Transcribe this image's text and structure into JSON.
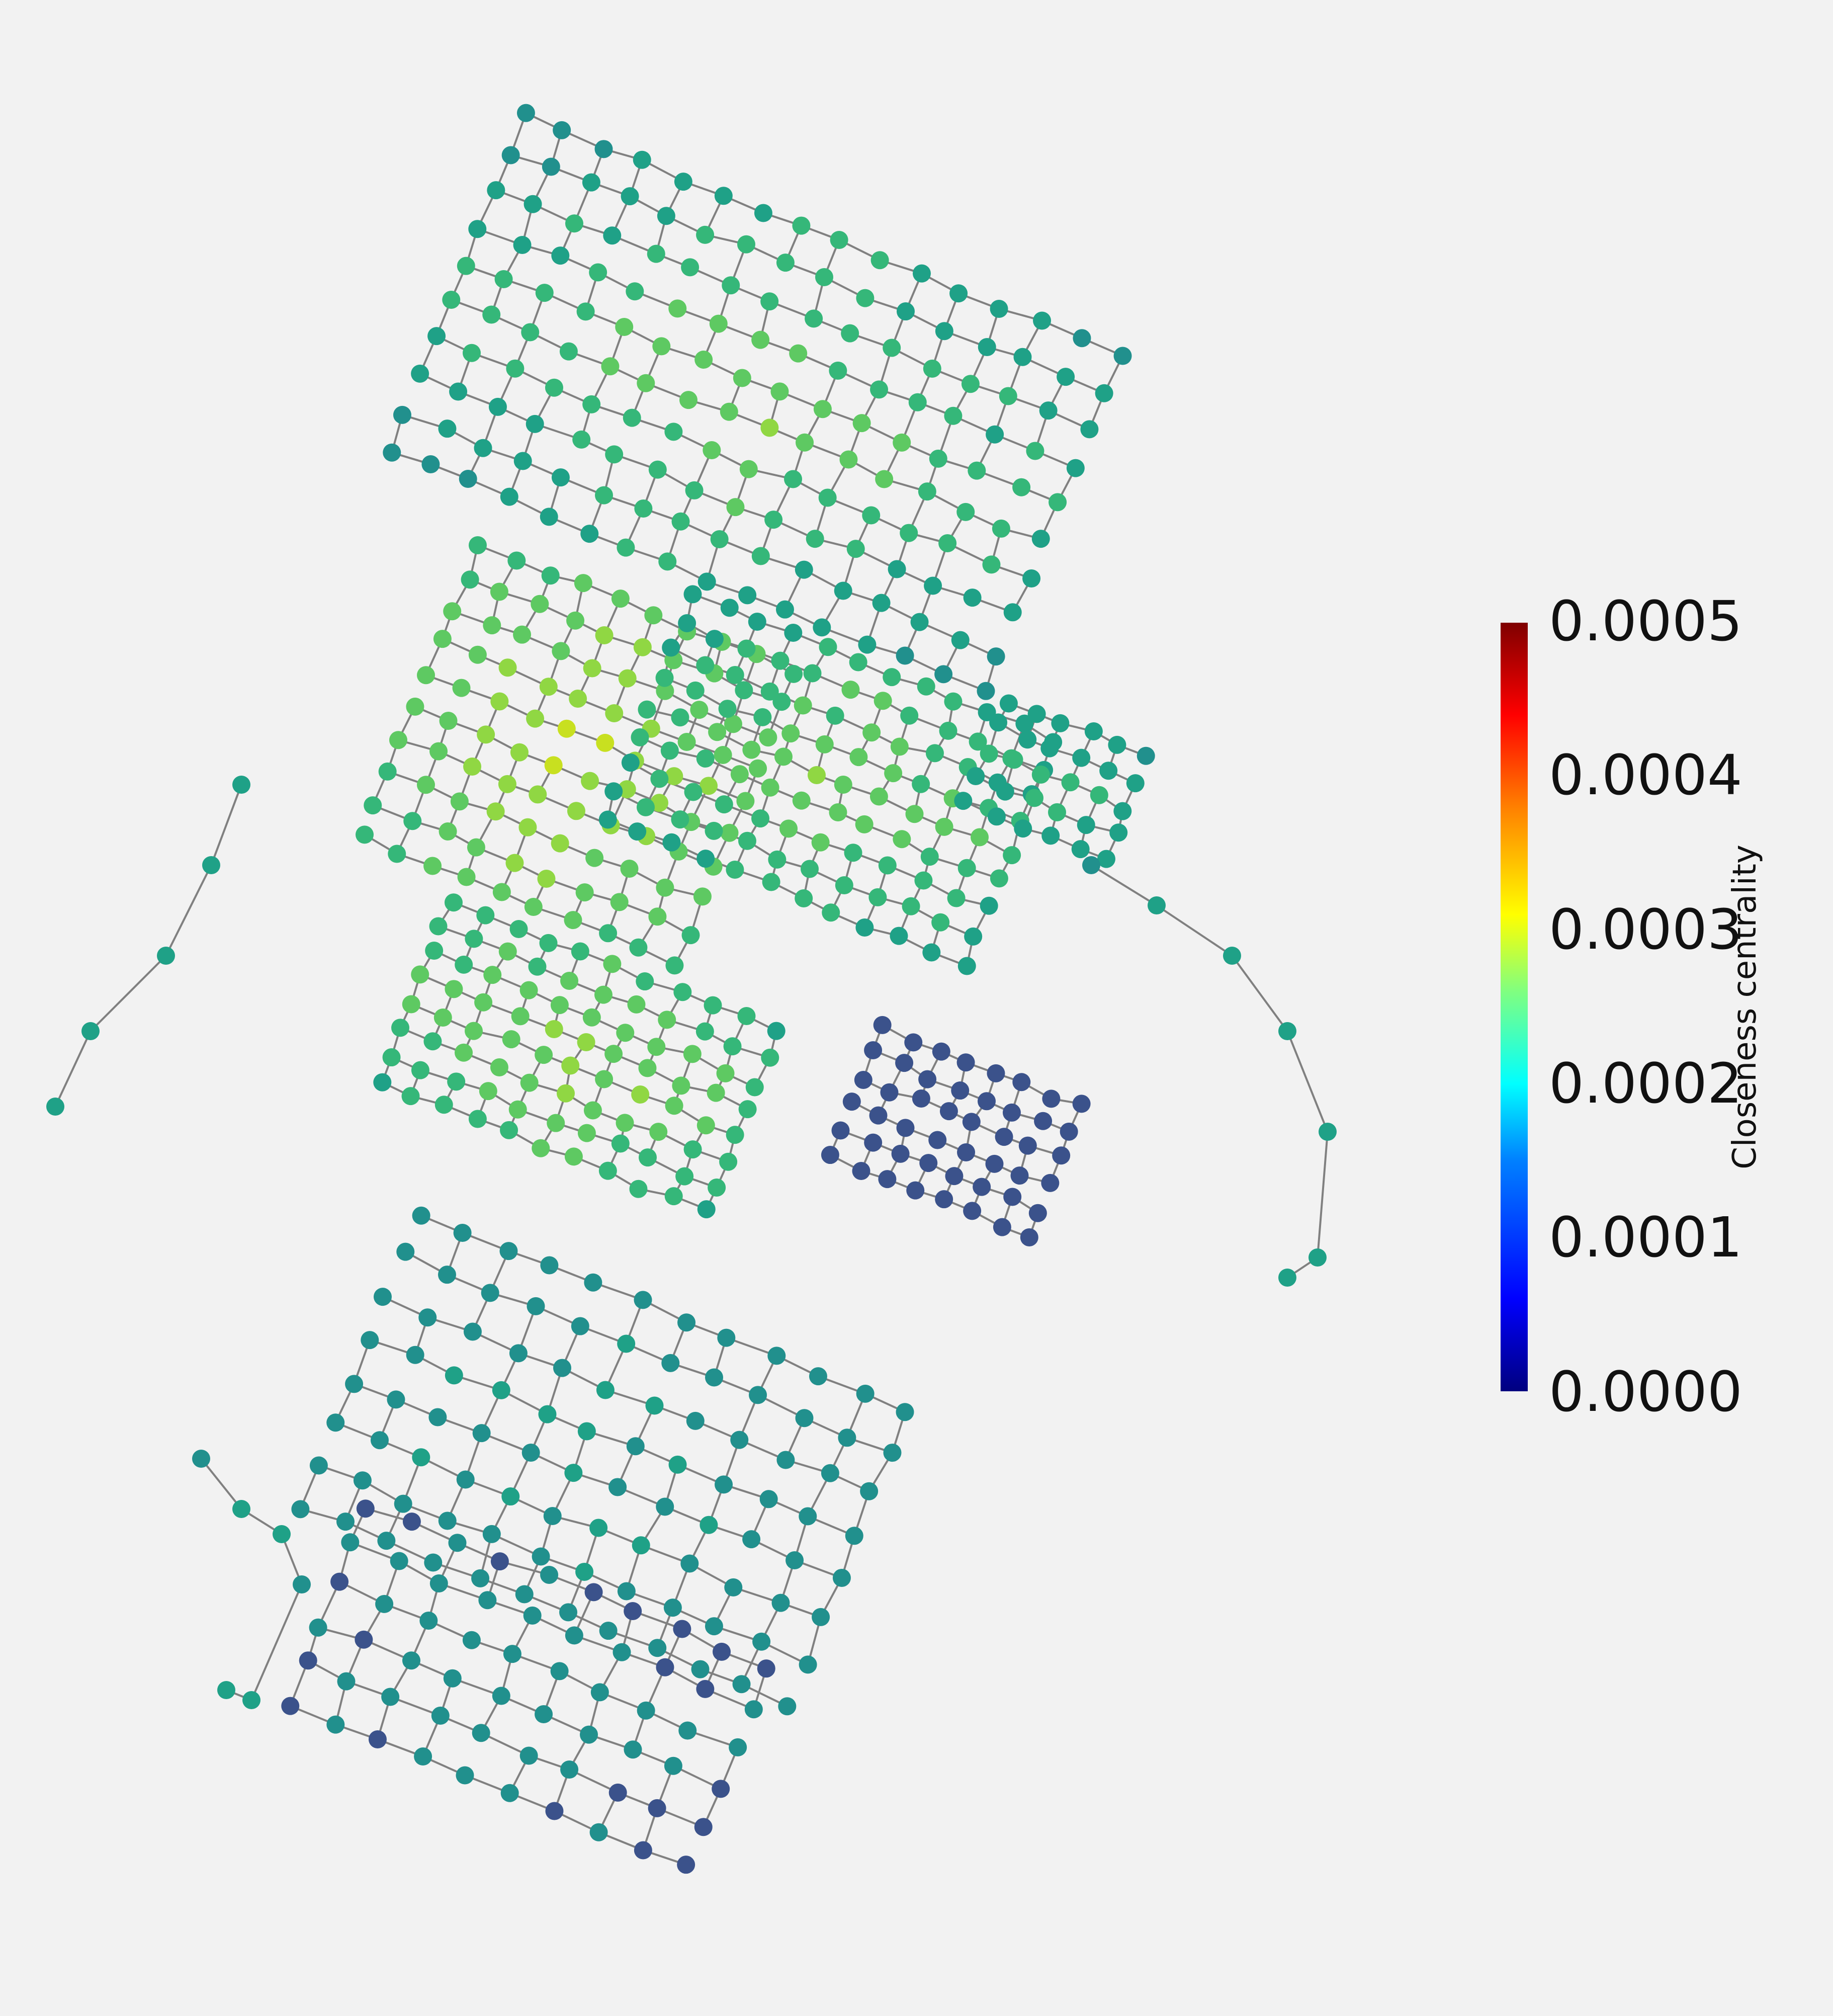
{
  "map": {
    "edge_color": "#808080",
    "background_color": "#f2f2f2",
    "node_colormap": [
      "#440154",
      "#3b528b",
      "#21908d",
      "#1fa187",
      "#35b779",
      "#5ec962",
      "#90d743",
      "#c8e020",
      "#fde725"
    ]
  },
  "colorbar": {
    "label": "Closeness centrality",
    "colormap": "jet",
    "range": [
      0.0,
      0.0005
    ],
    "ticks": [
      "0.0005",
      "0.0004",
      "0.0003",
      "0.0002",
      "0.0001",
      "0.0000"
    ]
  }
}
